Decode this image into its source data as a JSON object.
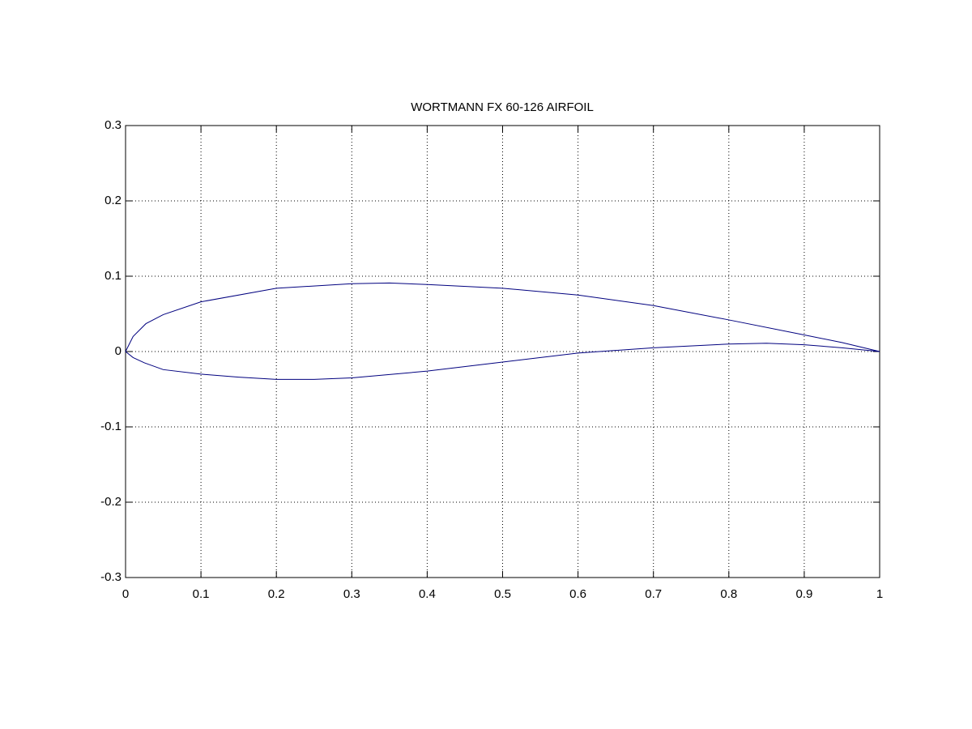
{
  "chart_data": {
    "type": "line",
    "title": "WORTMANN FX 60-126 AIRFOIL",
    "series": [
      {
        "color": "#00007f",
        "x": [
          0,
          0.01,
          0.027,
          0.05,
          0.1,
          0.2,
          0.3,
          0.35,
          0.4,
          0.5,
          0.6,
          0.7,
          0.8,
          0.9,
          0.95,
          1
        ],
        "values": [
          0,
          0.02,
          0.037,
          0.049,
          0.066,
          0.084,
          0.09,
          0.091,
          0.089,
          0.084,
          0.075,
          0.061,
          0.042,
          0.022,
          0.012,
          0
        ]
      },
      {
        "color": "#00007f",
        "x": [
          0,
          0.01,
          0.025,
          0.05,
          0.1,
          0.15,
          0.2,
          0.25,
          0.3,
          0.4,
          0.5,
          0.6,
          0.7,
          0.8,
          0.85,
          0.9,
          0.95,
          1
        ],
        "values": [
          0,
          -0.008,
          -0.015,
          -0.024,
          -0.03,
          -0.034,
          -0.037,
          -0.037,
          -0.035,
          -0.026,
          -0.014,
          -0.002,
          0.005,
          0.01,
          0.011,
          0.009,
          0.005,
          0
        ]
      }
    ],
    "xlim": [
      0,
      1
    ],
    "xticks": [
      0,
      0.1,
      0.2,
      0.3,
      0.4,
      0.5,
      0.6,
      0.7,
      0.8,
      0.9,
      1
    ],
    "ylim": [
      -0.3,
      0.3
    ],
    "yticks": [
      -0.3,
      -0.2,
      -0.1,
      0,
      0.1,
      0.2,
      0.3
    ],
    "grid": true
  }
}
